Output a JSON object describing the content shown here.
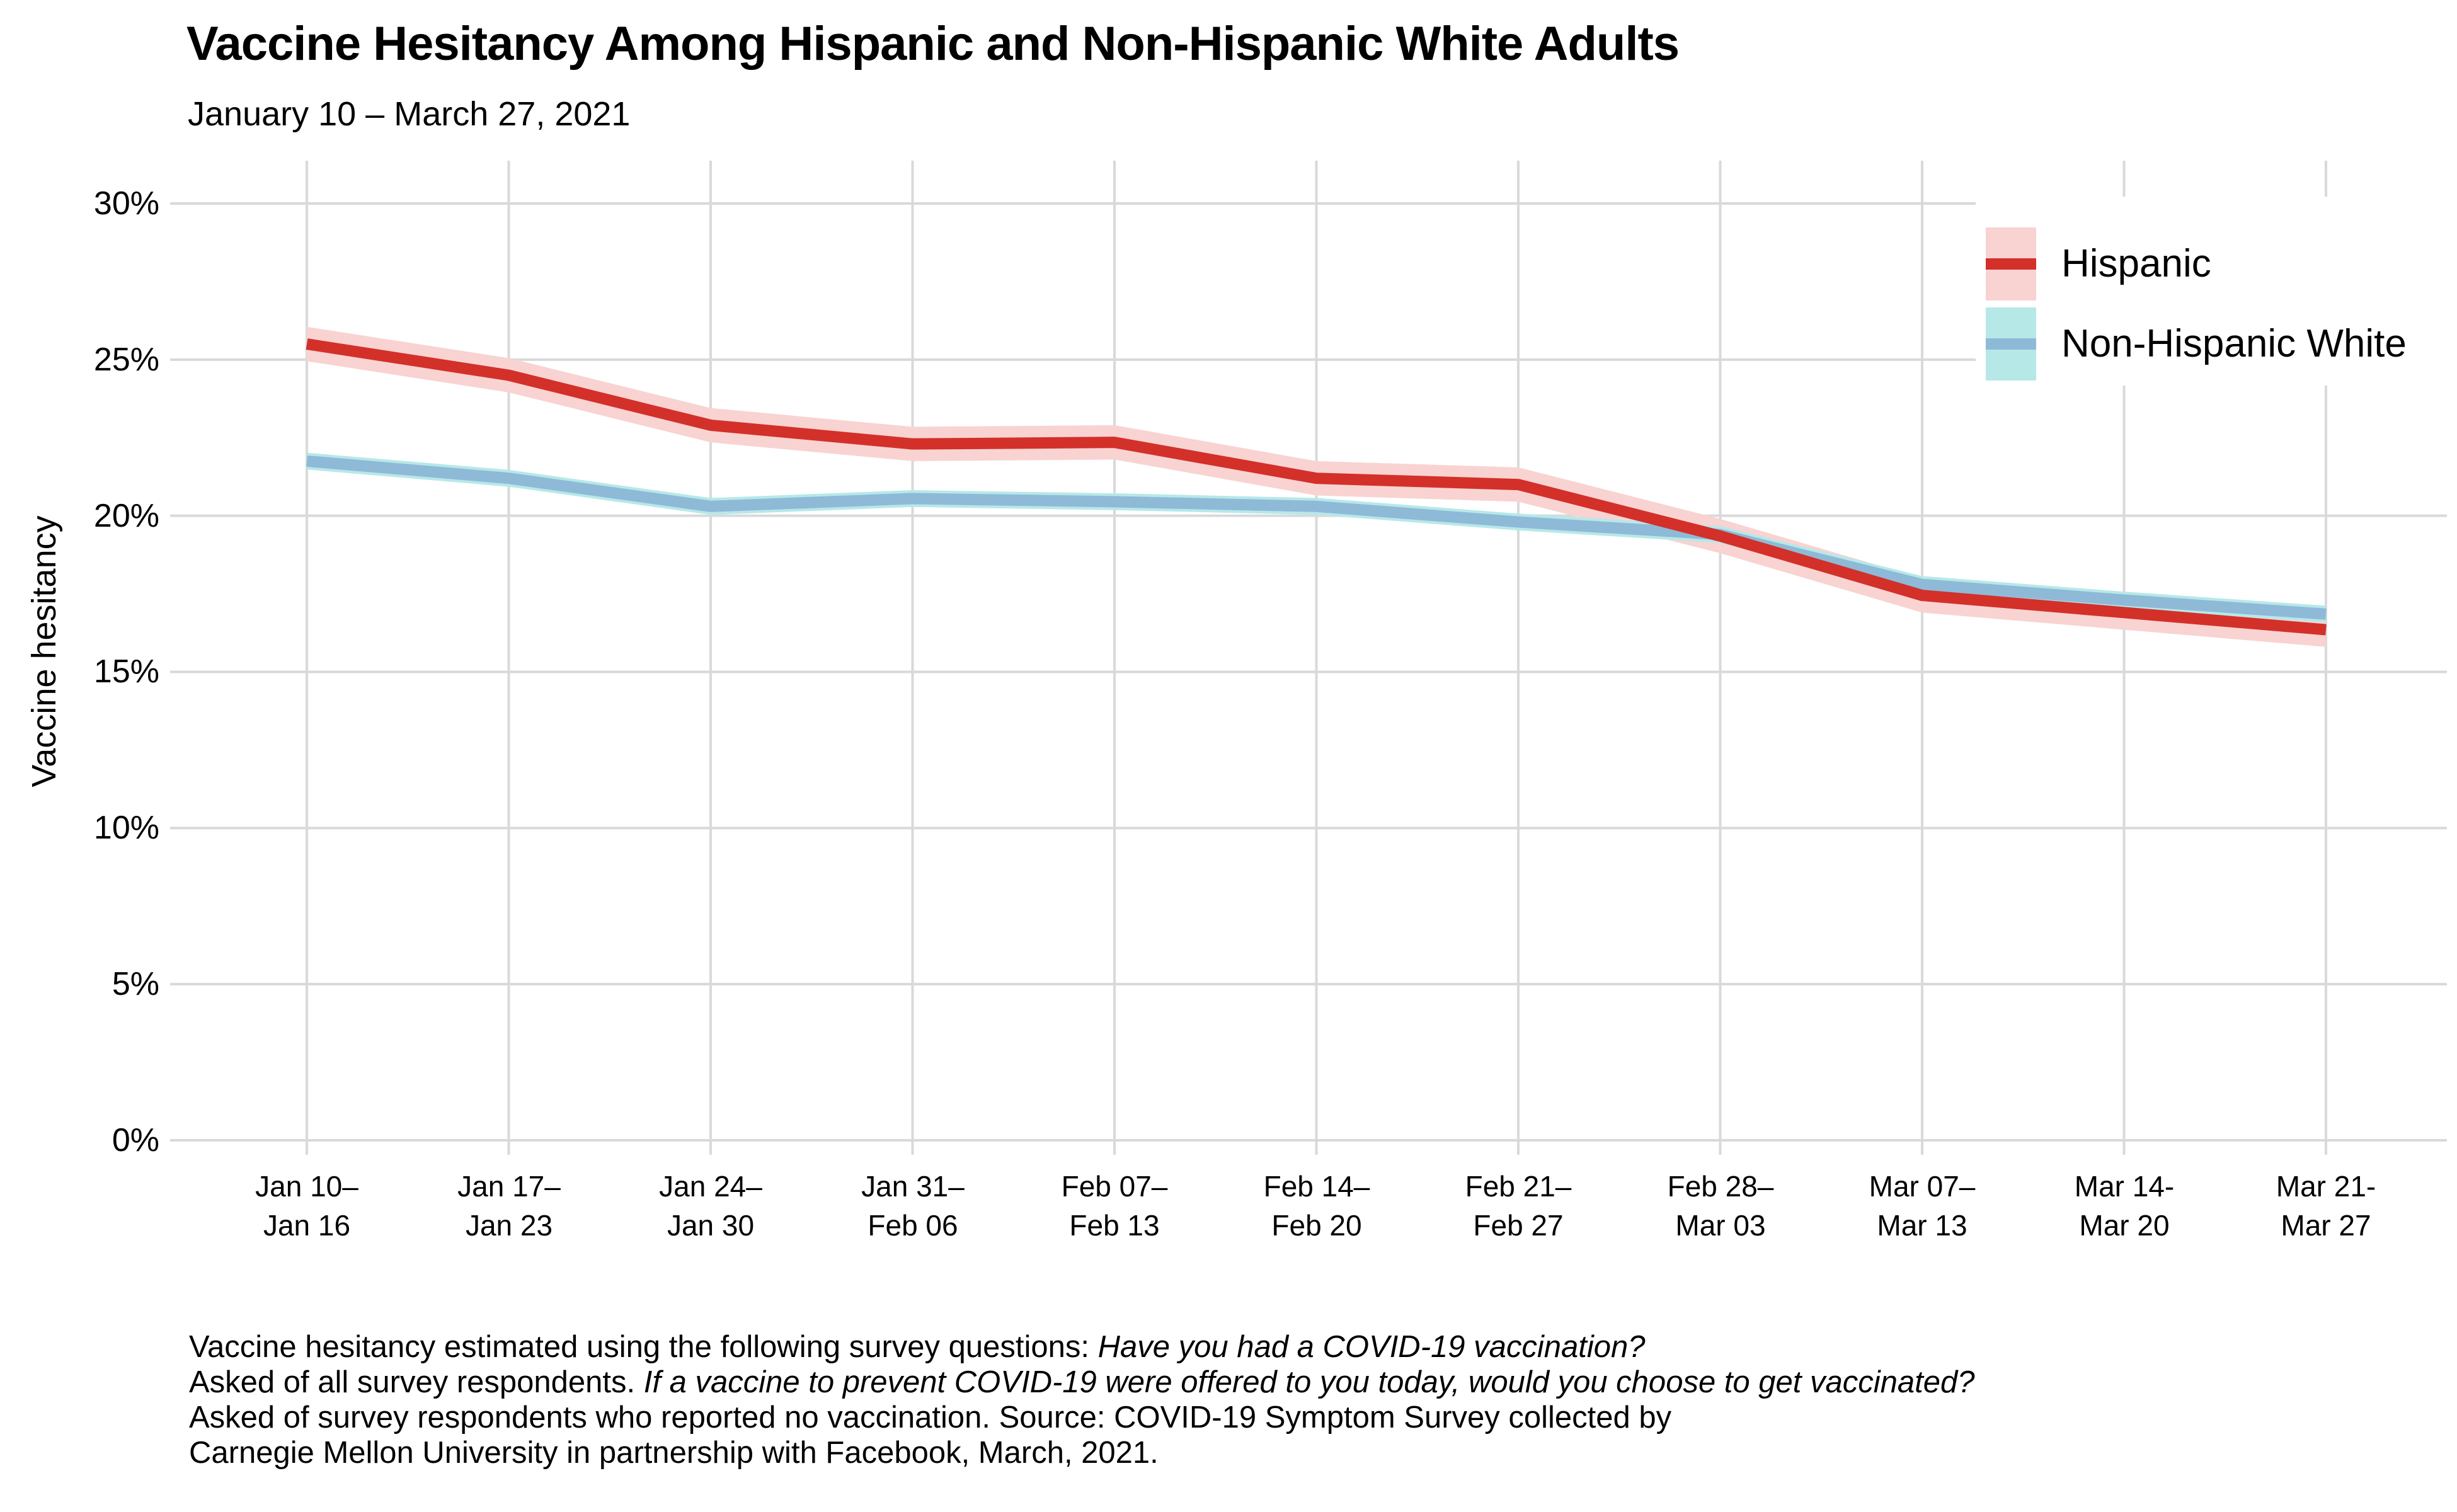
{
  "title": "Vaccine Hesitancy Among Hispanic and Non-Hispanic White Adults",
  "subtitle": "January 10 – March 27, 2021",
  "y_axis": {
    "label": "Vaccine hesitancy",
    "tick_labels": [
      "0%",
      "5%",
      "10%",
      "15%",
      "20%",
      "25%",
      "30%"
    ]
  },
  "x_axis": {
    "ticks": [
      {
        "line1": "Jan 10–",
        "line2": "Jan 16"
      },
      {
        "line1": "Jan 17–",
        "line2": "Jan 23"
      },
      {
        "line1": "Jan 24–",
        "line2": "Jan 30"
      },
      {
        "line1": "Jan 31–",
        "line2": "Feb 06"
      },
      {
        "line1": "Feb 07–",
        "line2": "Feb 13"
      },
      {
        "line1": "Feb 14–",
        "line2": "Feb 20"
      },
      {
        "line1": "Feb 21–",
        "line2": "Feb 27"
      },
      {
        "line1": "Feb 28–",
        "line2": "Mar 03"
      },
      {
        "line1": "Mar 07–",
        "line2": "Mar 13"
      },
      {
        "line1": "Mar 14-",
        "line2": "Mar 20"
      },
      {
        "line1": "Mar 21-",
        "line2": "Mar 27"
      }
    ]
  },
  "legend": {
    "items": [
      {
        "label": "Hispanic"
      },
      {
        "label": "Non-Hispanic White"
      }
    ]
  },
  "caption": {
    "lines": [
      {
        "segments": [
          {
            "text": "Vaccine hesitancy estimated using the following survey questions: ",
            "italic": false
          },
          {
            "text": "Have you had a COVID-19 vaccination?",
            "italic": true
          }
        ]
      },
      {
        "segments": [
          {
            "text": "Asked of all survey respondents. ",
            "italic": false
          },
          {
            "text": "If a vaccine to prevent COVID-19 were offered to you today, would you choose to get vaccinated?",
            "italic": true
          }
        ]
      },
      {
        "segments": [
          {
            "text": "Asked of survey respondents who reported no vaccination. Source: COVID-19 Symptom Survey collected by",
            "italic": false
          }
        ]
      },
      {
        "segments": [
          {
            "text": "Carnegie Mellon University in partnership with Facebook, March, 2021.",
            "italic": false
          }
        ]
      }
    ]
  },
  "colors": {
    "hispanic_line": "#d3302a",
    "hispanic_ribbon": "#f8d3d1",
    "nhw_line": "#8ebad8",
    "nhw_ribbon": "#b7e8e8",
    "gridline": "#d9d9d9",
    "legend_background": "#ffffff",
    "background": "#ffffff",
    "text": "#000000"
  },
  "chart_data": {
    "type": "line",
    "title": "Vaccine Hesitancy Among Hispanic and Non-Hispanic White Adults",
    "subtitle": "January 10 – March 27, 2021",
    "categories": [
      "Jan 10–Jan 16",
      "Jan 17–Jan 23",
      "Jan 24–Jan 30",
      "Jan 31–Feb 06",
      "Feb 07–Feb 13",
      "Feb 14–Feb 20",
      "Feb 21–Feb 27",
      "Feb 28–Mar 03",
      "Mar 07–Mar 13",
      "Mar 14-Mar 20",
      "Mar 21-Mar 27"
    ],
    "series": [
      {
        "name": "Hispanic",
        "values": [
          25.5,
          24.5,
          22.9,
          22.3,
          22.35,
          21.2,
          21.0,
          19.35,
          17.45,
          16.9,
          16.35
        ],
        "ci_halfwidth": 0.55,
        "line_color": "#d3302a",
        "ribbon_color": "#f8d3d1"
      },
      {
        "name": "Non-Hispanic White",
        "values": [
          21.75,
          21.2,
          20.3,
          20.55,
          20.45,
          20.3,
          19.8,
          19.4,
          17.8,
          17.3,
          16.85
        ],
        "ci_halfwidth": 0.27,
        "line_color": "#8ebad8",
        "ribbon_color": "#b7e8e8"
      }
    ],
    "xlabel": "",
    "ylabel": "Vaccine hesitancy",
    "ylim": [
      0,
      30
    ],
    "yticks": [
      0,
      5,
      10,
      15,
      20,
      25,
      30
    ],
    "grid": true,
    "legend_position": "top-right"
  }
}
